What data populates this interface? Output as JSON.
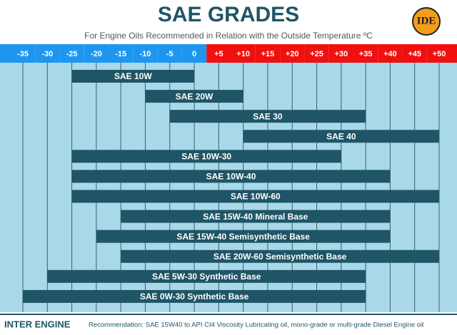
{
  "chart_data": {
    "type": "range",
    "title": "SAE GRADES",
    "subtitle": "For Engine Oils Recommended in Relation with the Outside Temperature ºC",
    "logo": "IDE",
    "brand": "INTER ENGINE",
    "note": "Recommendation: SAE 15W40 to API CI4 Viscosity Lubricating oil, mono-grade or multi-grade Diesel Engine oil",
    "categories": [
      "SAE 10W",
      "SAE 20W",
      "SAE 30",
      "SAE 40",
      "SAE 10W-30",
      "SAE 10W-40",
      "SAE 10W-60",
      "SAE 15W-40 Mineral Base",
      "SAE 15W-40 Semisynthetic Base",
      "SAE 20W-60 Semisynthetic Base",
      "SAE 5W-30 Synthetic Base",
      "SAE 0W-30 Synthetic Base"
    ],
    "low": [
      -25,
      -10,
      -5,
      10,
      -25,
      -25,
      -25,
      -15,
      -20,
      -15,
      -30,
      -35
    ],
    "high": [
      0,
      10,
      35,
      50,
      30,
      40,
      50,
      40,
      40,
      50,
      35,
      35
    ],
    "color": "#1f5566",
    "xlim": [
      -35,
      50
    ],
    "xticks": [
      -35,
      -30,
      -25,
      -20,
      -15,
      -10,
      -5,
      0,
      {
        "value": 5,
        "label": "+5"
      },
      {
        "value": 10,
        "label": "+10"
      },
      {
        "value": 15,
        "label": "+15"
      },
      {
        "value": 20,
        "label": "+20"
      },
      {
        "value": 25,
        "label": "+25"
      },
      {
        "value": 30,
        "label": "+30"
      },
      {
        "value": 35,
        "label": "+35"
      },
      {
        "value": 40,
        "label": "+40"
      },
      {
        "value": 45,
        "label": "+45"
      },
      {
        "value": 50,
        "label": "+50"
      }
    ],
    "cold_color": "#1e96f0",
    "warm_color": "#f01010",
    "grid": true
  }
}
